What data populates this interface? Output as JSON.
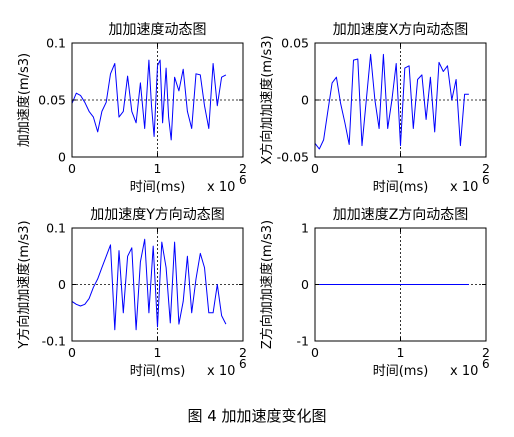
{
  "figure_caption": "图 4  加加速度变化图",
  "colors": {
    "series": "#0000ff",
    "axes": "#000000",
    "grid": "#000000",
    "background": "#ffffff"
  },
  "chart_data": [
    {
      "type": "line",
      "title": "加加速度动态图",
      "xlabel": "时间(ms)",
      "ylabel": "加加速度(m/s3)",
      "x_exponent_label": "x 10",
      "x_exponent_power": "6",
      "xlim": [
        0,
        2
      ],
      "ylim": [
        0,
        0.1
      ],
      "xticks": [
        "0",
        "1",
        "2"
      ],
      "yticks": [
        "0",
        "0.05",
        "0.1"
      ],
      "grid": "dashed lines at x=1 and y=0.05",
      "series": [
        {
          "x": [
            0.0,
            0.05,
            0.1,
            0.15,
            0.2,
            0.25,
            0.3,
            0.35,
            0.4,
            0.45,
            0.5,
            0.55,
            0.6,
            0.65,
            0.7,
            0.75,
            0.8,
            0.85,
            0.9,
            0.93,
            0.96,
            1.0,
            1.03,
            1.06,
            1.1,
            1.13,
            1.16,
            1.2,
            1.25,
            1.3,
            1.35,
            1.4,
            1.45,
            1.5,
            1.55,
            1.6,
            1.65,
            1.7,
            1.75,
            1.8
          ],
          "y": [
            0.047,
            0.056,
            0.054,
            0.048,
            0.04,
            0.035,
            0.022,
            0.04,
            0.048,
            0.073,
            0.082,
            0.035,
            0.04,
            0.071,
            0.04,
            0.03,
            0.065,
            0.025,
            0.085,
            0.045,
            0.018,
            0.08,
            0.085,
            0.03,
            0.078,
            0.035,
            0.015,
            0.07,
            0.058,
            0.077,
            0.04,
            0.025,
            0.073,
            0.072,
            0.045,
            0.025,
            0.082,
            0.045,
            0.07,
            0.072
          ]
        }
      ]
    },
    {
      "type": "line",
      "title": "加加速度X方向动态图",
      "xlabel": "时间(ms)",
      "ylabel": "X方向加加速度(m/s3)",
      "x_exponent_label": "x 10",
      "x_exponent_power": "6",
      "xlim": [
        0,
        2
      ],
      "ylim": [
        -0.05,
        0.05
      ],
      "xticks": [
        "0",
        "1",
        "2"
      ],
      "yticks": [
        "-0.05",
        "0",
        "0.05"
      ],
      "grid": "dashed lines at x=1 and y=0",
      "series": [
        {
          "x": [
            0.0,
            0.05,
            0.1,
            0.15,
            0.2,
            0.25,
            0.3,
            0.35,
            0.4,
            0.45,
            0.5,
            0.55,
            0.6,
            0.65,
            0.7,
            0.75,
            0.8,
            0.85,
            0.9,
            0.95,
            1.0,
            1.05,
            1.1,
            1.15,
            1.2,
            1.25,
            1.3,
            1.35,
            1.4,
            1.45,
            1.5,
            1.55,
            1.6,
            1.65,
            1.7,
            1.75,
            1.8
          ],
          "y": [
            -0.038,
            -0.043,
            -0.035,
            -0.01,
            0.015,
            0.02,
            -0.003,
            -0.02,
            -0.039,
            0.035,
            0.036,
            -0.04,
            0.0,
            0.04,
            0.0,
            -0.025,
            0.04,
            -0.025,
            0.0,
            0.032,
            -0.04,
            0.028,
            0.03,
            -0.025,
            0.018,
            0.022,
            -0.017,
            0.02,
            -0.028,
            0.033,
            0.025,
            0.03,
            0.0,
            0.018,
            -0.04,
            0.005,
            0.005
          ]
        }
      ]
    },
    {
      "type": "line",
      "title": "加加速度Y方向动态图",
      "xlabel": "时间(ms)",
      "ylabel": "Y方向加加速度(m/s3)",
      "x_exponent_label": "x 10",
      "x_exponent_power": "6",
      "xlim": [
        0,
        2
      ],
      "ylim": [
        -0.1,
        0.1
      ],
      "xticks": [
        "0",
        "1",
        "2"
      ],
      "yticks": [
        "-0.1",
        "0",
        "0.1"
      ],
      "grid": "dashed lines at x=1 and y=0",
      "series": [
        {
          "x": [
            0.0,
            0.05,
            0.1,
            0.15,
            0.2,
            0.25,
            0.3,
            0.35,
            0.4,
            0.45,
            0.5,
            0.55,
            0.6,
            0.65,
            0.7,
            0.75,
            0.8,
            0.85,
            0.9,
            0.95,
            1.0,
            1.05,
            1.1,
            1.15,
            1.2,
            1.25,
            1.3,
            1.35,
            1.4,
            1.45,
            1.5,
            1.55,
            1.6,
            1.65,
            1.7,
            1.75,
            1.8
          ],
          "y": [
            -0.03,
            -0.035,
            -0.038,
            -0.035,
            -0.025,
            -0.005,
            0.01,
            0.03,
            0.05,
            0.07,
            -0.08,
            0.06,
            -0.05,
            0.05,
            0.065,
            -0.08,
            0.04,
            0.08,
            -0.05,
            0.068,
            -0.075,
            0.075,
            0.03,
            -0.068,
            0.075,
            -0.07,
            -0.03,
            0.05,
            -0.05,
            0.01,
            0.055,
            0.03,
            -0.05,
            -0.05,
            0.0,
            -0.055,
            -0.07
          ]
        }
      ]
    },
    {
      "type": "line",
      "title": "加加速度Z方向动态图",
      "xlabel": "时间(ms)",
      "ylabel": "Z方向加加速度(m/s3)",
      "x_exponent_label": "x 10",
      "x_exponent_power": "6",
      "xlim": [
        0,
        2
      ],
      "ylim": [
        -1,
        1
      ],
      "xticks": [
        "0",
        "1",
        "2"
      ],
      "yticks": [
        "-1",
        "0",
        "1"
      ],
      "grid": "dashed lines at x=1 and y=0",
      "series": [
        {
          "x": [
            0,
            1.8
          ],
          "y": [
            0,
            0
          ]
        }
      ]
    }
  ]
}
